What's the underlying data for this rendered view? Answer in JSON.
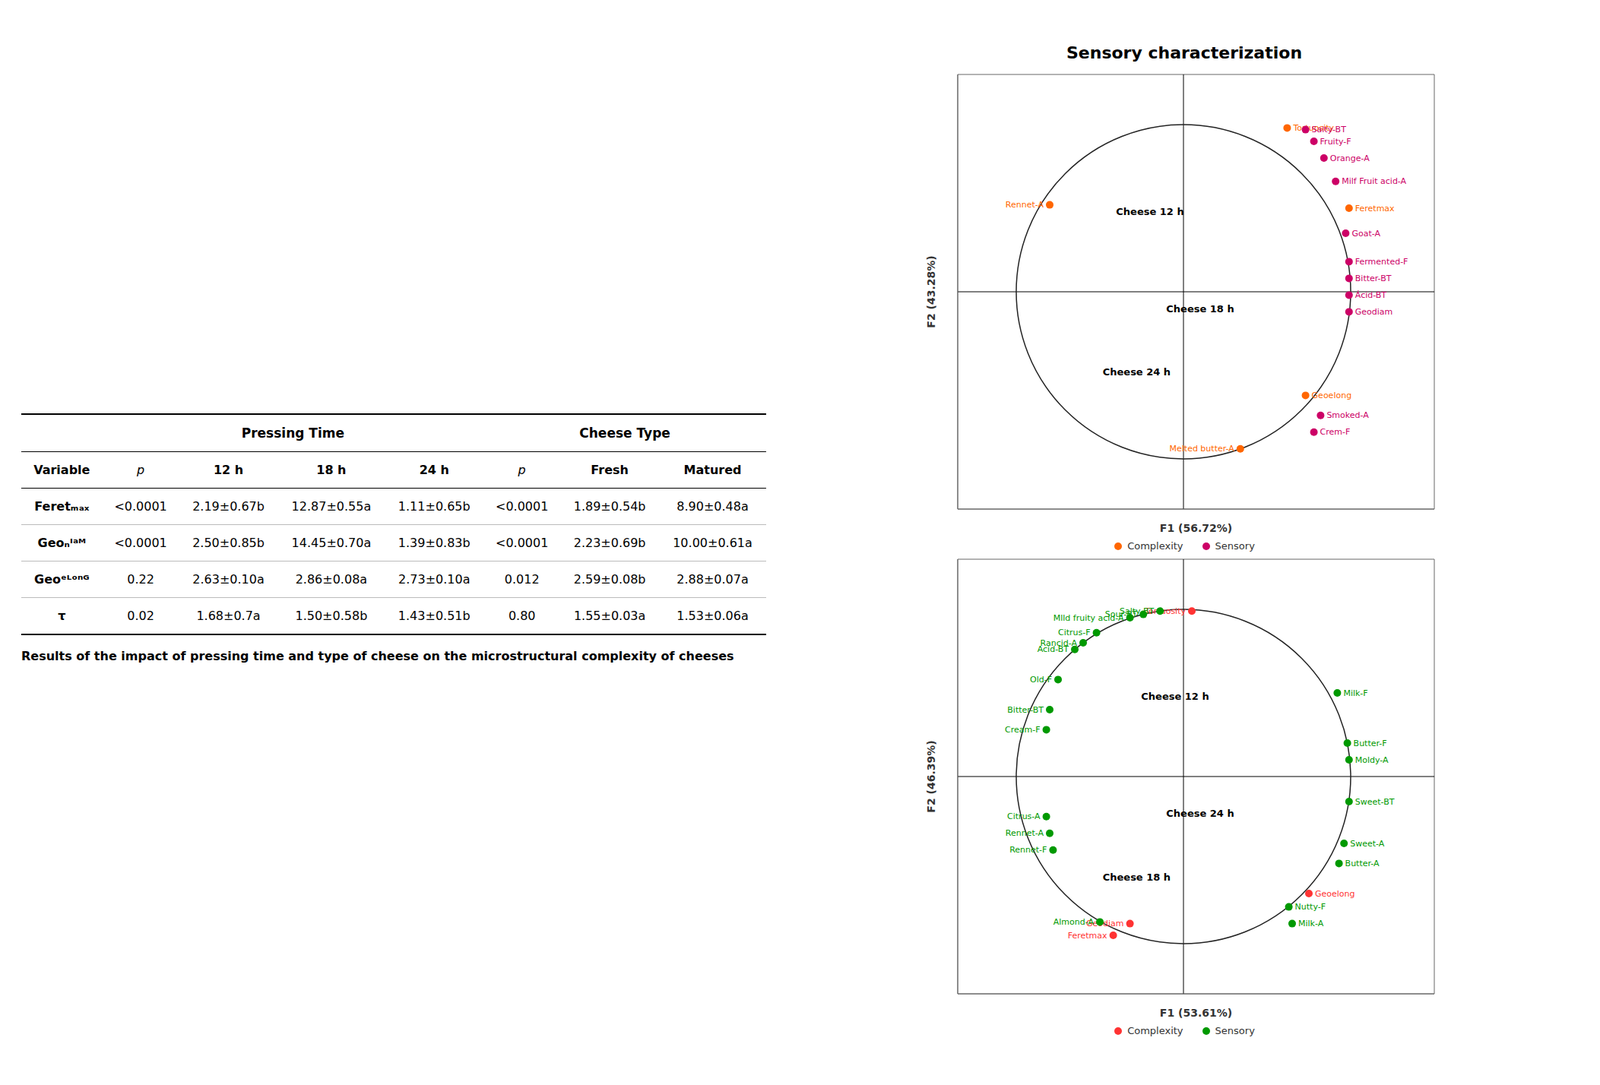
{
  "title": "Sensory characterization",
  "chart_data": [
    {
      "type": "scatter",
      "xlabel": "F1 (56.72%)",
      "ylabel": "F2 (43.28%)",
      "xlim": [
        -1.35,
        1.5
      ],
      "ylim": [
        -1.3,
        1.3
      ],
      "tick_labels": false,
      "legend": "bottom",
      "series": [
        {
          "name": "Complexity",
          "color": "#FF6600",
          "x": [
            0.62,
            0.99,
            -0.8,
            0.34,
            0.73
          ],
          "y": [
            0.98,
            0.5,
            0.52,
            -0.94,
            -0.62
          ],
          "labels": [
            "Tortuosity",
            "Feretmax",
            "Rennet-A",
            "Melted butter-A",
            "Geoelong"
          ]
        },
        {
          "name": "Sensory",
          "color": "#CC0066",
          "x": [
            0.73,
            0.78,
            0.84,
            0.91,
            0.97,
            0.99,
            0.99,
            0.99,
            0.99,
            0.82,
            0.78
          ],
          "y": [
            0.97,
            0.9,
            0.8,
            0.66,
            0.35,
            0.18,
            0.08,
            -0.02,
            -0.12,
            -0.74,
            -0.84
          ],
          "labels": [
            "Salty-BT",
            "Fruity-F",
            "Orange-A",
            "Milf Fruit acid-A",
            "Goat-A",
            "Fermented-F",
            "Bitter-BT",
            "Ácid-BT",
            "Geodiam",
            "Smoked-A",
            "Crem-F"
          ]
        }
      ],
      "annotations": [
        {
          "x": -0.2,
          "y": 0.48,
          "text": "Cheese 12 h"
        },
        {
          "x": 0.1,
          "y": -0.1,
          "text": "Cheese 18 h"
        },
        {
          "x": -0.28,
          "y": -0.48,
          "text": "Cheese 24 h"
        }
      ]
    },
    {
      "type": "scatter",
      "xlabel": "F1 (53.61%)",
      "ylabel": "F2 (46.39%)",
      "xlim": [
        -1.35,
        1.5
      ],
      "ylim": [
        -1.3,
        1.3
      ],
      "tick_labels": false,
      "legend": "bottom",
      "series": [
        {
          "name": "Complexity",
          "color": "#FF3333",
          "x": [
            0.05,
            -0.32,
            -0.42,
            0.75
          ],
          "y": [
            0.99,
            -0.88,
            -0.95,
            -0.7
          ],
          "labels": [
            "Tortuosity",
            "Geodiam",
            "Feretmax",
            "Geoelong"
          ]
        },
        {
          "name": "Sensory",
          "color": "#009900",
          "x": [
            -0.14,
            -0.24,
            -0.32,
            -0.52,
            -0.6,
            -0.65,
            -0.75,
            -0.8,
            -0.82,
            -0.82,
            -0.8,
            -0.78,
            -0.5,
            0.63,
            0.65,
            0.92,
            0.98,
            0.99,
            0.99,
            0.96,
            0.93
          ],
          "y": [
            0.99,
            0.97,
            0.95,
            0.86,
            0.8,
            0.76,
            0.58,
            0.4,
            0.28,
            -0.24,
            -0.34,
            -0.44,
            -0.87,
            -0.78,
            -0.88,
            0.5,
            0.2,
            0.1,
            -0.15,
            -0.4,
            -0.52
          ],
          "labels": [
            "Salty-BT",
            "Sour-BT",
            "Mlld fruity acid-A",
            "Citrus-F",
            "Rancid-A",
            "Acid-BT",
            "Old-F",
            "Bitter-BT",
            "Cream-F",
            "Citrus-A",
            "Rennet-A",
            "Rennet-F",
            "Almond-A",
            "Nutty-F",
            "Milk-A",
            "Milk-F",
            "Butter-F",
            "Moldy-A",
            "Sweet-BT",
            "Sweet-A",
            "Butter-A"
          ]
        }
      ],
      "annotations": [
        {
          "x": -0.05,
          "y": 0.48,
          "text": "Cheese 12 h"
        },
        {
          "x": 0.1,
          "y": -0.22,
          "text": "Cheese 24 h"
        },
        {
          "x": -0.28,
          "y": -0.6,
          "text": "Cheese 18 h"
        }
      ]
    }
  ],
  "table": {
    "group_headers": [
      "Pressing Time",
      "Cheese Type"
    ],
    "headers": [
      "Variable",
      "p",
      "12 h",
      "18 h",
      "24 h",
      "p",
      "Fresh",
      "Matured"
    ],
    "rows": [
      [
        "Feretₘₐₓ",
        "<0.0001",
        "2.19±0.67b",
        "12.87±0.55a",
        "1.11±0.65b",
        "<0.0001",
        "1.89±0.54b",
        "8.90±0.48a"
      ],
      [
        "Geoₙᴵᵃᴹ",
        "<0.0001",
        "2.50±0.85b",
        "14.45±0.70a",
        "1.39±0.83b",
        "<0.0001",
        "2.23±0.69b",
        "10.00±0.61a"
      ],
      [
        "Geoᵉᴸᵒⁿᴳ",
        "0.22",
        "2.63±0.10a",
        "2.86±0.08a",
        "2.73±0.10a",
        "0.012",
        "2.59±0.08b",
        "2.88±0.07a"
      ],
      [
        "τ",
        "0.02",
        "1.68±0.7a",
        "1.50±0.58b",
        "1.43±0.51b",
        "0.80",
        "1.55±0.03a",
        "1.53±0.06a"
      ]
    ],
    "caption": "Results of the impact of pressing time and type of cheese on the microstructural complexity of cheeses"
  }
}
